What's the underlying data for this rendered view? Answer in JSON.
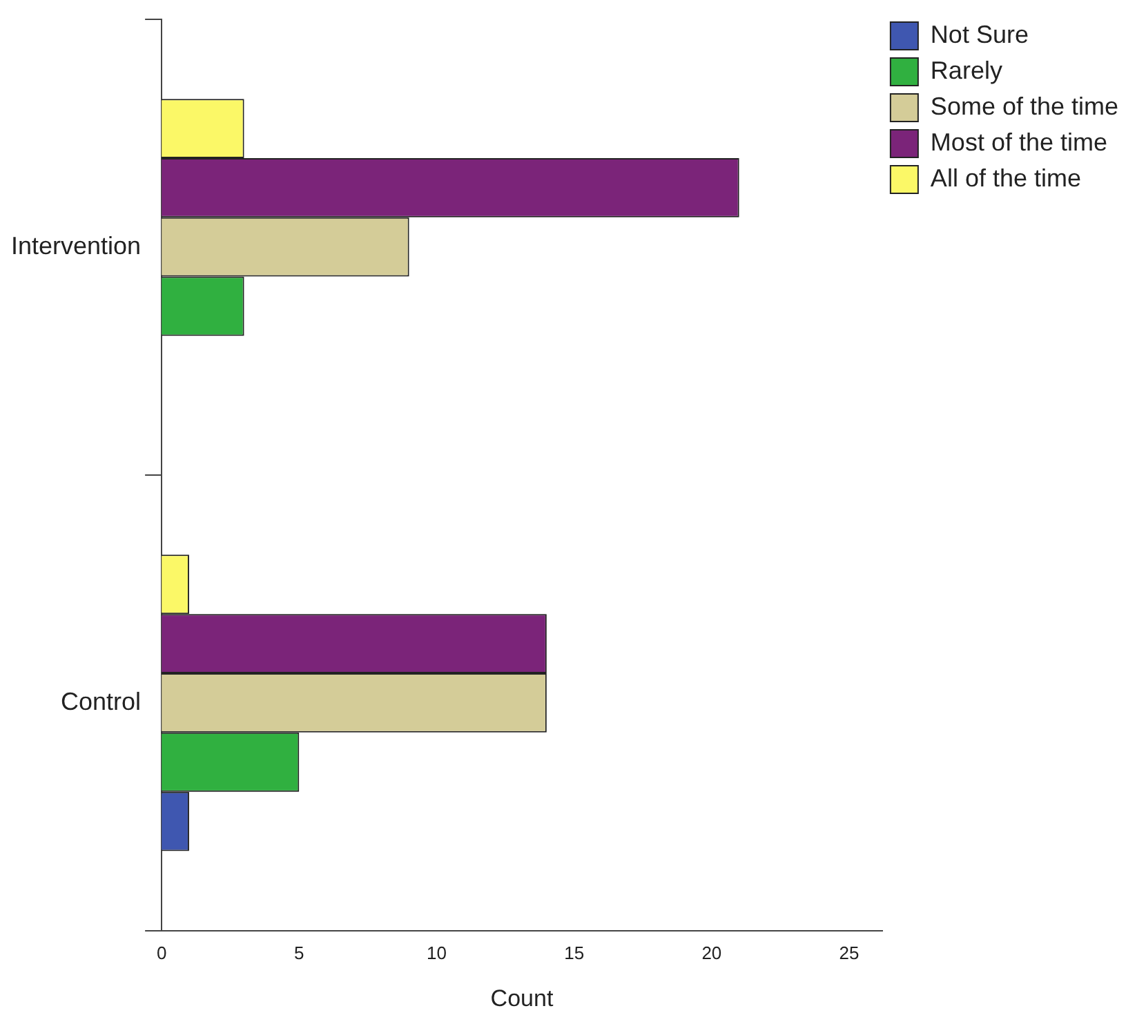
{
  "chart_data": {
    "type": "bar",
    "orientation": "horizontal",
    "xlabel": "Count",
    "categories": [
      "Intervention",
      "Control"
    ],
    "series": [
      {
        "name": "Not Sure",
        "color": "#3f57b0",
        "values": [
          0,
          1
        ]
      },
      {
        "name": "Rarely",
        "color": "#30b040",
        "values": [
          3,
          5
        ]
      },
      {
        "name": "Some of the time",
        "color": "#d4cc98",
        "values": [
          9,
          14
        ]
      },
      {
        "name": "Most of the time",
        "color": "#7b2479",
        "values": [
          21,
          14
        ]
      },
      {
        "name": "All of the time",
        "color": "#fbf867",
        "values": [
          3,
          1
        ]
      }
    ],
    "xlim": [
      0,
      26.2
    ],
    "xticks": [
      0,
      5,
      10,
      15,
      20,
      25
    ],
    "grid": false,
    "legend": "top right"
  }
}
